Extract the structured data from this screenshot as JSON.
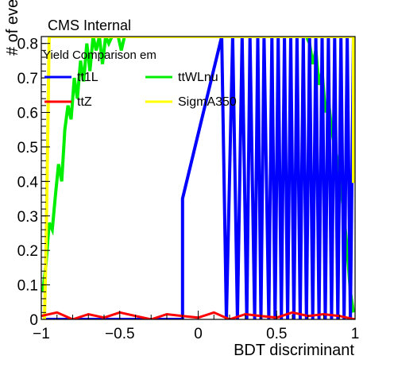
{
  "chart_data": {
    "type": "line",
    "title": "CMS Internal",
    "xlabel": "BDT discriminant",
    "ylabel": "# of events",
    "xlim": [
      -1,
      1
    ],
    "ylim": [
      0,
      0.82
    ],
    "xticks": [
      "-1",
      "-0.5",
      "0",
      "0.5",
      "1"
    ],
    "yticks": [
      "0",
      "0.1",
      "0.2",
      "0.3",
      "0.4",
      "0.5",
      "0.6",
      "0.7",
      "0.8"
    ],
    "legend": {
      "header": "Yield Comparison em",
      "placement": "top-left",
      "entries": [
        "tt1L",
        "ttWLnu",
        "ttZ",
        "SigmA350"
      ]
    },
    "colors": {
      "tt1L": "#0000ff",
      "ttWLnu": "#00ee00",
      "ttZ": "#ff0000",
      "SigmA350": "#ffff00"
    },
    "series": [
      {
        "name": "tt1L",
        "x": [
          -0.98,
          -0.1,
          -0.1,
          0.15,
          0.18,
          0.22,
          0.25,
          0.28,
          0.31,
          0.33,
          0.36,
          0.38,
          0.4,
          0.42,
          0.45,
          0.47,
          0.49,
          0.51,
          0.53,
          0.55,
          0.57,
          0.59,
          0.61,
          0.63,
          0.65,
          0.67,
          0.69,
          0.71,
          0.73,
          0.75,
          0.77,
          0.79,
          0.81,
          0.83,
          0.85,
          0.87,
          0.89,
          0.91,
          0.93,
          0.95,
          0.97,
          0.99
        ],
        "y": [
          0.0,
          0.0,
          0.35,
          0.82,
          0.0,
          0.82,
          0.0,
          0.82,
          0.0,
          0.82,
          0.0,
          0.82,
          0.0,
          0.82,
          0.0,
          0.82,
          0.0,
          0.82,
          0.0,
          0.82,
          0.0,
          0.82,
          0.0,
          0.82,
          0.0,
          0.82,
          0.0,
          0.82,
          0.0,
          0.82,
          0.0,
          0.82,
          0.0,
          0.82,
          0.0,
          0.82,
          0.0,
          0.82,
          0.0,
          0.82,
          0.0,
          0.82
        ]
      },
      {
        "name": "ttWLnu",
        "x": [
          -0.99,
          -0.97,
          -0.95,
          -0.93,
          -0.91,
          -0.89,
          -0.87,
          -0.85,
          -0.83,
          -0.81,
          -0.79,
          -0.77,
          -0.75,
          -0.73,
          -0.71,
          -0.69,
          -0.67,
          -0.65,
          -0.63,
          -0.61,
          -0.59,
          -0.57,
          -0.55,
          -0.53,
          -0.51,
          -0.49,
          -0.47,
          -0.45,
          -0.43,
          -0.41,
          -0.39,
          -0.37,
          -0.35,
          -0.33,
          -0.31,
          -0.29,
          -0.27,
          -0.25,
          -0.23,
          -0.21,
          -0.19,
          -0.17,
          -0.15,
          -0.13,
          -0.11,
          -0.09,
          -0.07,
          -0.05,
          -0.03,
          -0.01,
          0.01,
          0.03,
          0.05,
          0.07,
          0.09,
          0.11,
          0.13,
          0.15,
          0.17,
          0.19,
          0.21,
          0.23,
          0.25,
          0.27,
          0.29,
          0.31,
          0.33,
          0.35,
          0.37,
          0.39,
          0.41,
          0.43,
          0.45,
          0.47,
          0.49,
          0.51,
          0.53,
          0.55,
          0.57,
          0.59,
          0.61,
          0.63,
          0.65,
          0.67,
          0.69,
          0.71,
          0.73,
          0.75,
          0.77,
          0.79,
          0.81,
          0.83,
          0.85,
          0.87,
          0.89,
          0.91,
          0.93,
          0.95,
          0.97,
          0.99
        ],
        "y": [
          0.08,
          0.16,
          0.28,
          0.26,
          0.36,
          0.45,
          0.4,
          0.55,
          0.62,
          0.58,
          0.7,
          0.64,
          0.75,
          0.69,
          0.8,
          0.72,
          0.82,
          0.78,
          0.82,
          0.74,
          0.82,
          0.8,
          0.82,
          0.82,
          0.82,
          0.78,
          0.82,
          0.82,
          0.82,
          0.82,
          0.82,
          0.82,
          0.82,
          0.82,
          0.82,
          0.82,
          0.82,
          0.82,
          0.82,
          0.82,
          0.82,
          0.82,
          0.82,
          0.82,
          0.82,
          0.82,
          0.82,
          0.82,
          0.82,
          0.82,
          0.82,
          0.82,
          0.82,
          0.82,
          0.82,
          0.82,
          0.82,
          0.82,
          0.82,
          0.82,
          0.82,
          0.82,
          0.82,
          0.82,
          0.82,
          0.82,
          0.82,
          0.82,
          0.82,
          0.82,
          0.82,
          0.82,
          0.82,
          0.82,
          0.82,
          0.82,
          0.82,
          0.82,
          0.82,
          0.82,
          0.82,
          0.82,
          0.82,
          0.82,
          0.82,
          0.8,
          0.74,
          0.78,
          0.68,
          0.72,
          0.6,
          0.64,
          0.55,
          0.5,
          0.45,
          0.38,
          0.3,
          0.2,
          0.08,
          0.02
        ],
        "y_noise_note": ""
      },
      {
        "name": "ttZ",
        "x": [
          -1.0,
          -0.9,
          -0.8,
          -0.7,
          -0.6,
          -0.5,
          -0.4,
          -0.3,
          -0.2,
          -0.1,
          0.0,
          0.1,
          0.2,
          0.3,
          0.4,
          0.5,
          0.6,
          0.7,
          0.8,
          0.9,
          1.0
        ],
        "y": [
          0.01,
          0.02,
          0.0,
          0.015,
          0.005,
          0.02,
          0.01,
          0.0,
          0.015,
          0.01,
          0.005,
          0.02,
          0.0,
          0.015,
          0.01,
          0.005,
          0.02,
          0.01,
          0.015,
          0.01,
          0.0
        ]
      },
      {
        "name": "SigmA350",
        "x": [
          -0.98,
          -0.97,
          -0.96,
          -0.95,
          -0.94,
          -0.93,
          0.99,
          0.99,
          1.0
        ],
        "y": [
          0.0,
          0.2,
          0.5,
          0.82,
          0.82,
          0.82,
          0.82,
          0.4,
          0.4
        ]
      }
    ]
  }
}
